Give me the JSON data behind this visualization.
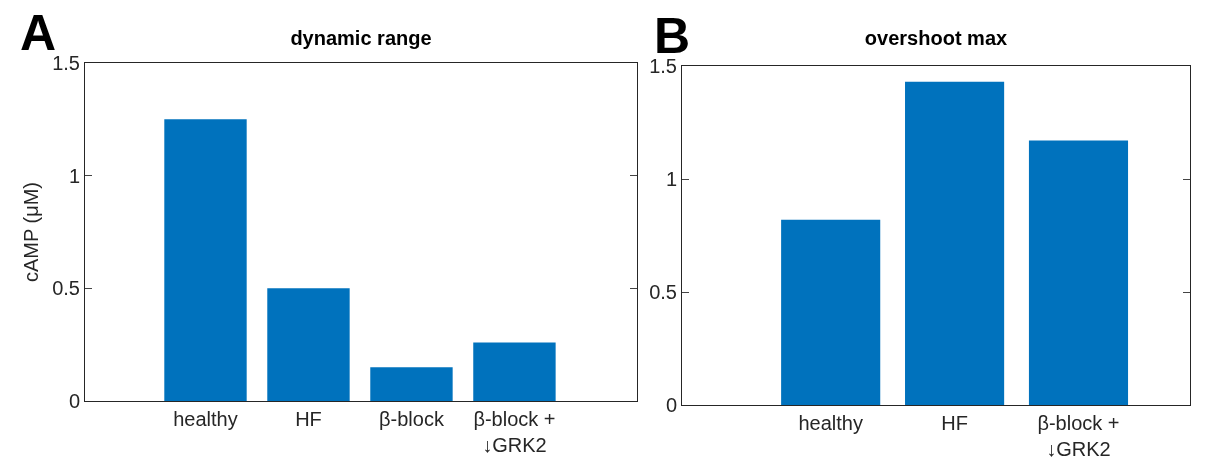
{
  "chart_data": [
    {
      "type": "bar",
      "title": "dynamic range",
      "ylabel": "cAMP (μM)",
      "annotations": [
        "A"
      ],
      "categories": [
        "healthy",
        "HF",
        "β-block",
        "β-block +\n↓GRK2"
      ],
      "values": [
        1.25,
        0.5,
        0.15,
        0.26
      ],
      "color": "#0072bd",
      "ylim": [
        0,
        1.5
      ],
      "yticks": [
        0,
        0.5,
        1,
        1.5
      ]
    },
    {
      "type": "bar",
      "title": "overshoot max",
      "annotations": [
        "B"
      ],
      "categories": [
        "healthy",
        "HF",
        "β-block +\n↓GRK2"
      ],
      "values": [
        0.82,
        1.43,
        1.17
      ],
      "color": "#0072bd",
      "ylim": [
        0,
        1.5
      ],
      "yticks": [
        0,
        0.5,
        1,
        1.5
      ]
    }
  ]
}
